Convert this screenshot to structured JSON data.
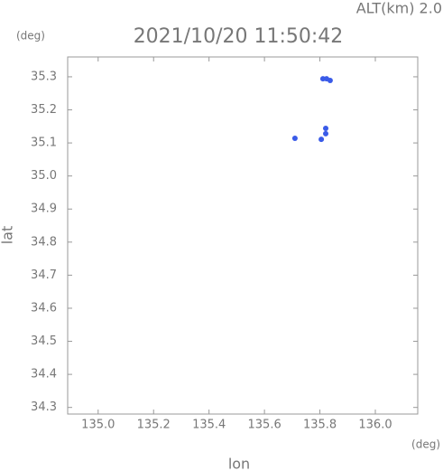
{
  "chart_data": {
    "type": "scatter",
    "title": "2021/10/20 11:50:42",
    "annotation": "ALT(km) 2.0",
    "y_unit": "(deg)",
    "x_unit": "(deg)",
    "xlabel": "lon",
    "ylabel": "lat",
    "x": [
      135.811,
      135.824,
      135.837,
      135.821,
      135.821,
      135.805,
      135.71
    ],
    "y": [
      35.294,
      35.294,
      35.289,
      35.144,
      35.128,
      35.111,
      35.114
    ],
    "color": "#3a5be8",
    "xlim": [
      134.89,
      136.153
    ],
    "ylim": [
      34.28,
      35.36
    ],
    "xticks": [
      {
        "value": 135.0,
        "label": "135.0"
      },
      135.2,
      135.4,
      135.6,
      135.8,
      {
        "value": 136.0,
        "label": "136.0"
      }
    ],
    "yticks": [
      34.3,
      34.4,
      34.5,
      34.6,
      34.7,
      34.8,
      34.9,
      {
        "value": 35.0,
        "label": "35.0"
      },
      35.1,
      35.2,
      35.3
    ]
  }
}
